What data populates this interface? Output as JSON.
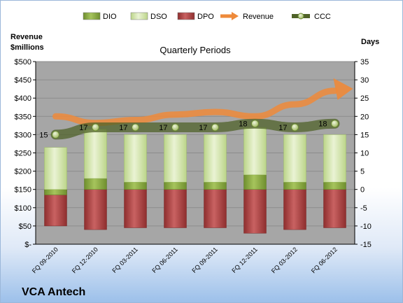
{
  "chart_data": {
    "type": "bar",
    "company": "VCA Antech",
    "title": "Quarterly Periods",
    "left_axis_label": [
      "Revenue",
      "$millions"
    ],
    "right_axis_label": "Days",
    "categories": [
      "FQ 09-2010",
      "FQ 12-2010",
      "FQ 03-2011",
      "FQ 06-2011",
      "FQ 09-2011",
      "FQ 12-2011",
      "FQ 03-2012",
      "FQ 06-2012"
    ],
    "left_ticks": [
      "$-",
      "$50",
      "$100",
      "$150",
      "$200",
      "$250",
      "$300",
      "$350",
      "$400",
      "$450",
      "$500"
    ],
    "right_ticks": [
      "-15",
      "-10",
      "-5",
      "0",
      "5",
      "10",
      "15",
      "20",
      "25",
      "30",
      "35"
    ],
    "y_left_range": [
      0,
      500
    ],
    "y_right_range": [
      -15,
      35
    ],
    "legend": [
      {
        "name": "DIO",
        "kind": "bar",
        "color": "#8fb04a"
      },
      {
        "name": "DSO",
        "kind": "bar",
        "color": "#d4e6ac"
      },
      {
        "name": "DPO",
        "kind": "bar",
        "color": "#b24b4b"
      },
      {
        "name": "Revenue",
        "kind": "arrow",
        "color": "#ee8a3a"
      },
      {
        "name": "CCC",
        "kind": "line",
        "color": "#4f6228"
      }
    ],
    "series": [
      {
        "name": "DIO",
        "axis": "right",
        "values": [
          -1.5,
          3,
          2,
          2,
          2,
          4,
          2,
          2
        ]
      },
      {
        "name": "DSO",
        "axis": "right",
        "values": [
          13,
          13.5,
          13,
          13,
          13,
          13,
          13,
          13
        ]
      },
      {
        "name": "DPO",
        "axis": "right",
        "values": [
          -10,
          -11,
          -10.5,
          -10.5,
          -10.5,
          -12,
          -11,
          -10.5
        ]
      },
      {
        "name": "Revenue",
        "axis": "left",
        "values": [
          350,
          332,
          340,
          355,
          362,
          350,
          383,
          420
        ]
      },
      {
        "name": "CCC",
        "axis": "right",
        "values": [
          15,
          17,
          17,
          17,
          17,
          18,
          17,
          18
        ]
      }
    ],
    "ccc_labels": [
      "15",
      "17",
      "17",
      "17",
      "17",
      "18",
      "17",
      "18"
    ],
    "colors": {
      "plot_bg": "#a6a6a6",
      "dio": "#8fb04a",
      "dso": "#d4e6ac",
      "dpo": "#b24b4b",
      "revenue": "#ee8a3a",
      "ccc": "#4f6228",
      "ccc_marker": "#c3d69b"
    }
  }
}
